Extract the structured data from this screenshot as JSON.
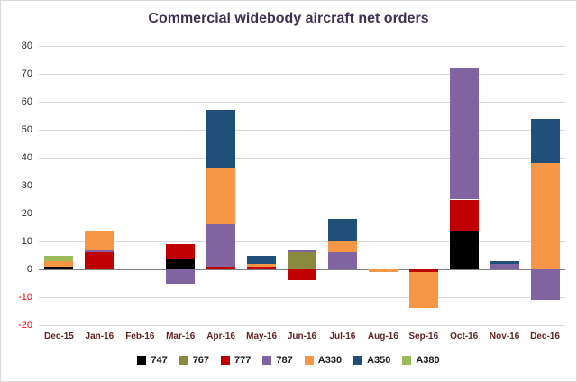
{
  "chart_data": {
    "type": "bar",
    "stacked": true,
    "title": "Commercial widebody aircraft net orders",
    "categories": [
      "Dec-15",
      "Jan-16",
      "Feb-16",
      "Mar-16",
      "Apr-16",
      "May-16",
      "Jun-16",
      "Jul-16",
      "Aug-16",
      "Sep-16",
      "Oct-16",
      "Nov-16",
      "Dec-16"
    ],
    "series": [
      {
        "name": "747",
        "color": "#000000",
        "values": [
          1,
          0,
          0,
          4,
          0,
          0,
          0,
          0,
          0,
          0,
          14,
          0,
          0
        ]
      },
      {
        "name": "767",
        "color": "#8A8A3F",
        "values": [
          0,
          0,
          0,
          0,
          0,
          0,
          6,
          0,
          0,
          0,
          0,
          0,
          0
        ]
      },
      {
        "name": "777",
        "color": "#C00000",
        "values": [
          0,
          6,
          0,
          5,
          1,
          1,
          -4,
          0,
          0,
          -1,
          11,
          0,
          0
        ]
      },
      {
        "name": "787",
        "color": "#8064A2",
        "values": [
          0,
          1,
          0,
          -5,
          15,
          0,
          1,
          6,
          0,
          0,
          47,
          2,
          -11
        ]
      },
      {
        "name": "A330",
        "color": "#F79646",
        "values": [
          2,
          7,
          0,
          0,
          20,
          1,
          0,
          4,
          -1,
          -13,
          0,
          0,
          38
        ]
      },
      {
        "name": "A350",
        "color": "#1F4E79",
        "values": [
          0,
          0,
          0,
          0,
          21,
          3,
          0,
          8,
          0,
          0,
          0,
          1,
          16
        ]
      },
      {
        "name": "A380",
        "color": "#9BBB59",
        "values": [
          2,
          0,
          0,
          0,
          0,
          0,
          0,
          0,
          0,
          0,
          0,
          0,
          0
        ]
      }
    ],
    "ylim": [
      -20,
      80
    ],
    "ytick_step": 10,
    "grid": true,
    "legend_position": "bottom"
  },
  "colors": {
    "title_color": "#403152",
    "xtick_color": "#632423",
    "ytick_color": "#262626",
    "ytick_negative_color": "#FF0000",
    "gridline": "#D9D9D9",
    "axis_line": "#808080",
    "border": "#D9D9D9",
    "background": "#FFFFFF"
  }
}
